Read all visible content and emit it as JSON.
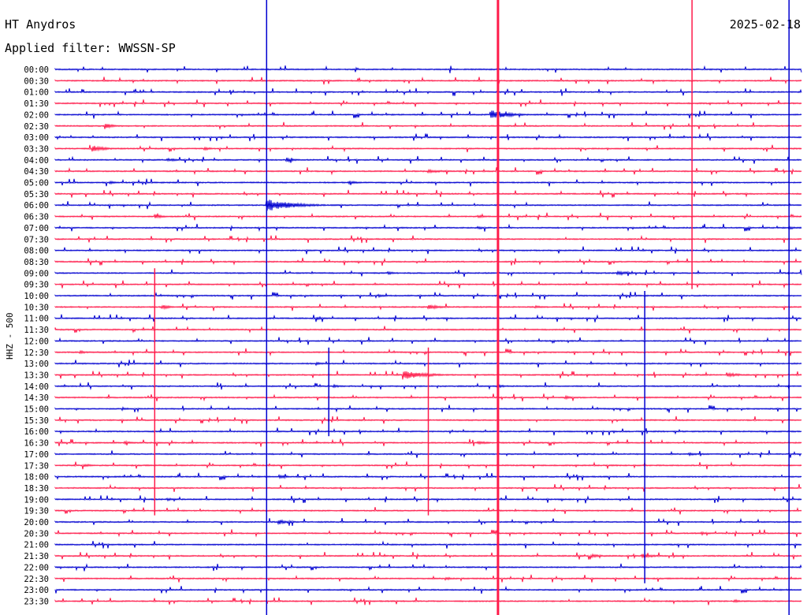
{
  "header": {
    "station": "HT Anydros",
    "date": "2025-02-18",
    "filter_label": "Applied filter: WWSSN-SP"
  },
  "colors": {
    "even_trace": "#0000d0",
    "odd_trace": "#ff1a4a",
    "text": "#000000"
  },
  "chart_data": {
    "type": "line",
    "title": "HT Anydros",
    "ylabel": "HHZ - 500",
    "row_labels": [
      "00:00",
      "00:30",
      "01:00",
      "01:30",
      "02:00",
      "02:30",
      "03:00",
      "03:30",
      "04:00",
      "04:30",
      "05:00",
      "05:30",
      "06:00",
      "06:30",
      "07:00",
      "07:30",
      "08:00",
      "08:30",
      "09:00",
      "09:30",
      "10:00",
      "10:30",
      "11:00",
      "11:30",
      "12:00",
      "12:30",
      "13:00",
      "13:30",
      "14:00",
      "14:30",
      "15:00",
      "15:30",
      "16:00",
      "16:30",
      "17:00",
      "17:30",
      "18:00",
      "18:30",
      "19:00",
      "19:30",
      "20:00",
      "20:30",
      "21:00",
      "21:30",
      "22:00",
      "22:30",
      "23:00",
      "23:30"
    ],
    "row_minutes": 30,
    "alternating_colors": [
      "blue",
      "red"
    ],
    "grid": false,
    "events": [
      {
        "row": 4,
        "minute": 17.5,
        "direction": "up",
        "amplitude": 7,
        "coda": 2.0
      },
      {
        "row": 5,
        "minute": 2.0,
        "direction": "down",
        "amplitude": 4,
        "coda": 1.0
      },
      {
        "row": 7,
        "minute": 1.5,
        "direction": "both",
        "amplitude": 4,
        "coda": 1.5
      },
      {
        "row": 7,
        "minute": 6.0,
        "direction": "both",
        "amplitude": 2,
        "coda": 1.0
      },
      {
        "row": 8,
        "minute": 4.5,
        "direction": "both",
        "amplitude": 2,
        "coda": 1.5
      },
      {
        "row": 8,
        "minute": 9.3,
        "direction": "both",
        "amplitude": 3,
        "coda": 1.0
      },
      {
        "row": 9,
        "minute": 15.0,
        "direction": "both",
        "amplitude": 2,
        "coda": 2.5
      },
      {
        "row": 10,
        "minute": 11.8,
        "direction": "both",
        "amplitude": 2,
        "coda": 1.5
      },
      {
        "row": 10,
        "minute": 2.2,
        "direction": "both",
        "amplitude": 2,
        "coda": 1.0
      },
      {
        "row": 12,
        "minute": 8.5,
        "direction": "both",
        "amplitude": 8,
        "coda": 3.0
      },
      {
        "row": 13,
        "minute": 4.0,
        "direction": "both",
        "amplitude": 3,
        "coda": 1.0
      },
      {
        "row": 13,
        "minute": 17.0,
        "direction": "both",
        "amplitude": 2,
        "coda": 1.0
      },
      {
        "row": 14,
        "minute": 17.0,
        "direction": "both",
        "amplitude": 2,
        "coda": 1.0
      },
      {
        "row": 14,
        "minute": 29.5,
        "direction": "both",
        "amplitude": 2,
        "coda": 1.0
      },
      {
        "row": 18,
        "minute": 22.6,
        "direction": "both",
        "amplitude": 3,
        "coda": 1.5
      },
      {
        "row": 18,
        "minute": 13.4,
        "direction": "both",
        "amplitude": 2,
        "coda": 1.0
      },
      {
        "row": 20,
        "minute": 13.0,
        "direction": "both",
        "amplitude": 2,
        "coda": 1.0
      },
      {
        "row": 21,
        "minute": 4.3,
        "direction": "both",
        "amplitude": 3,
        "coda": 1.0
      },
      {
        "row": 21,
        "minute": 15.0,
        "direction": "both",
        "amplitude": 3,
        "coda": 1.5
      },
      {
        "row": 21,
        "minute": 19.3,
        "direction": "both",
        "amplitude": 2,
        "coda": 1.0
      },
      {
        "row": 22,
        "minute": 10.5,
        "direction": "both",
        "amplitude": 2,
        "coda": 1.0
      },
      {
        "row": 25,
        "minute": 1.0,
        "direction": "both",
        "amplitude": 2,
        "coda": 1.0
      },
      {
        "row": 26,
        "minute": 10.5,
        "direction": "both",
        "amplitude": 2,
        "coda": 1.0
      },
      {
        "row": 27,
        "minute": 14.0,
        "direction": "both",
        "amplitude": 6,
        "coda": 2.5
      },
      {
        "row": 27,
        "minute": 27.0,
        "direction": "both",
        "amplitude": 3,
        "coda": 1.5
      },
      {
        "row": 28,
        "minute": 11.2,
        "direction": "both",
        "amplitude": 2,
        "coda": 1.0
      },
      {
        "row": 28,
        "minute": 17.8,
        "direction": "both",
        "amplitude": 2,
        "coda": 1.0
      },
      {
        "row": 29,
        "minute": 20.5,
        "direction": "both",
        "amplitude": 2,
        "coda": 1.0
      },
      {
        "row": 30,
        "minute": 2.7,
        "direction": "both",
        "amplitude": 2,
        "coda": 1.0
      },
      {
        "row": 33,
        "minute": 17.0,
        "direction": "both",
        "amplitude": 2,
        "coda": 1.5
      },
      {
        "row": 33,
        "minute": 2.8,
        "direction": "both",
        "amplitude": 2,
        "coda": 1.0
      },
      {
        "row": 34,
        "minute": 25.5,
        "direction": "both",
        "amplitude": 2,
        "coda": 1.0
      },
      {
        "row": 35,
        "minute": 1.2,
        "direction": "both",
        "amplitude": 2,
        "coda": 1.0
      },
      {
        "row": 36,
        "minute": 9.0,
        "direction": "both",
        "amplitude": 3,
        "coda": 1.0
      },
      {
        "row": 38,
        "minute": 4.5,
        "direction": "both",
        "amplitude": 2,
        "coda": 1.0
      },
      {
        "row": 40,
        "minute": 9.0,
        "direction": "both",
        "amplitude": 3,
        "coda": 1.5
      },
      {
        "row": 41,
        "minute": 26.0,
        "direction": "both",
        "amplitude": 2,
        "coda": 1.0
      },
      {
        "row": 43,
        "minute": 21.6,
        "direction": "both",
        "amplitude": 2,
        "coda": 1.5
      },
      {
        "row": 43,
        "minute": 23.6,
        "direction": "both",
        "amplitude": 3,
        "coda": 1.5
      },
      {
        "row": 45,
        "minute": 15.7,
        "direction": "both",
        "amplitude": 2,
        "coda": 1.0
      },
      {
        "row": 47,
        "minute": 27.3,
        "direction": "both",
        "amplitude": 2,
        "coda": 1.0
      }
    ],
    "long_spikes": [
      {
        "minute": 8.5,
        "top_row": 0,
        "bottom_row": 47,
        "color": "blue"
      },
      {
        "minute": 17.8,
        "top_row": 0,
        "bottom_row": 47,
        "color": "red"
      },
      {
        "minute": 25.6,
        "top_row": 0,
        "bottom_row": 19,
        "color": "red"
      },
      {
        "minute": 29.5,
        "top_row": 0,
        "bottom_row": 47,
        "color": "blue"
      },
      {
        "minute": 4.0,
        "top_row": 18,
        "bottom_row": 39,
        "color": "red"
      },
      {
        "minute": 11.0,
        "top_row": 25,
        "bottom_row": 32,
        "color": "blue"
      },
      {
        "minute": 15.0,
        "top_row": 25,
        "bottom_row": 39,
        "color": "red"
      },
      {
        "minute": 23.7,
        "top_row": 20,
        "bottom_row": 45,
        "color": "blue"
      }
    ]
  }
}
